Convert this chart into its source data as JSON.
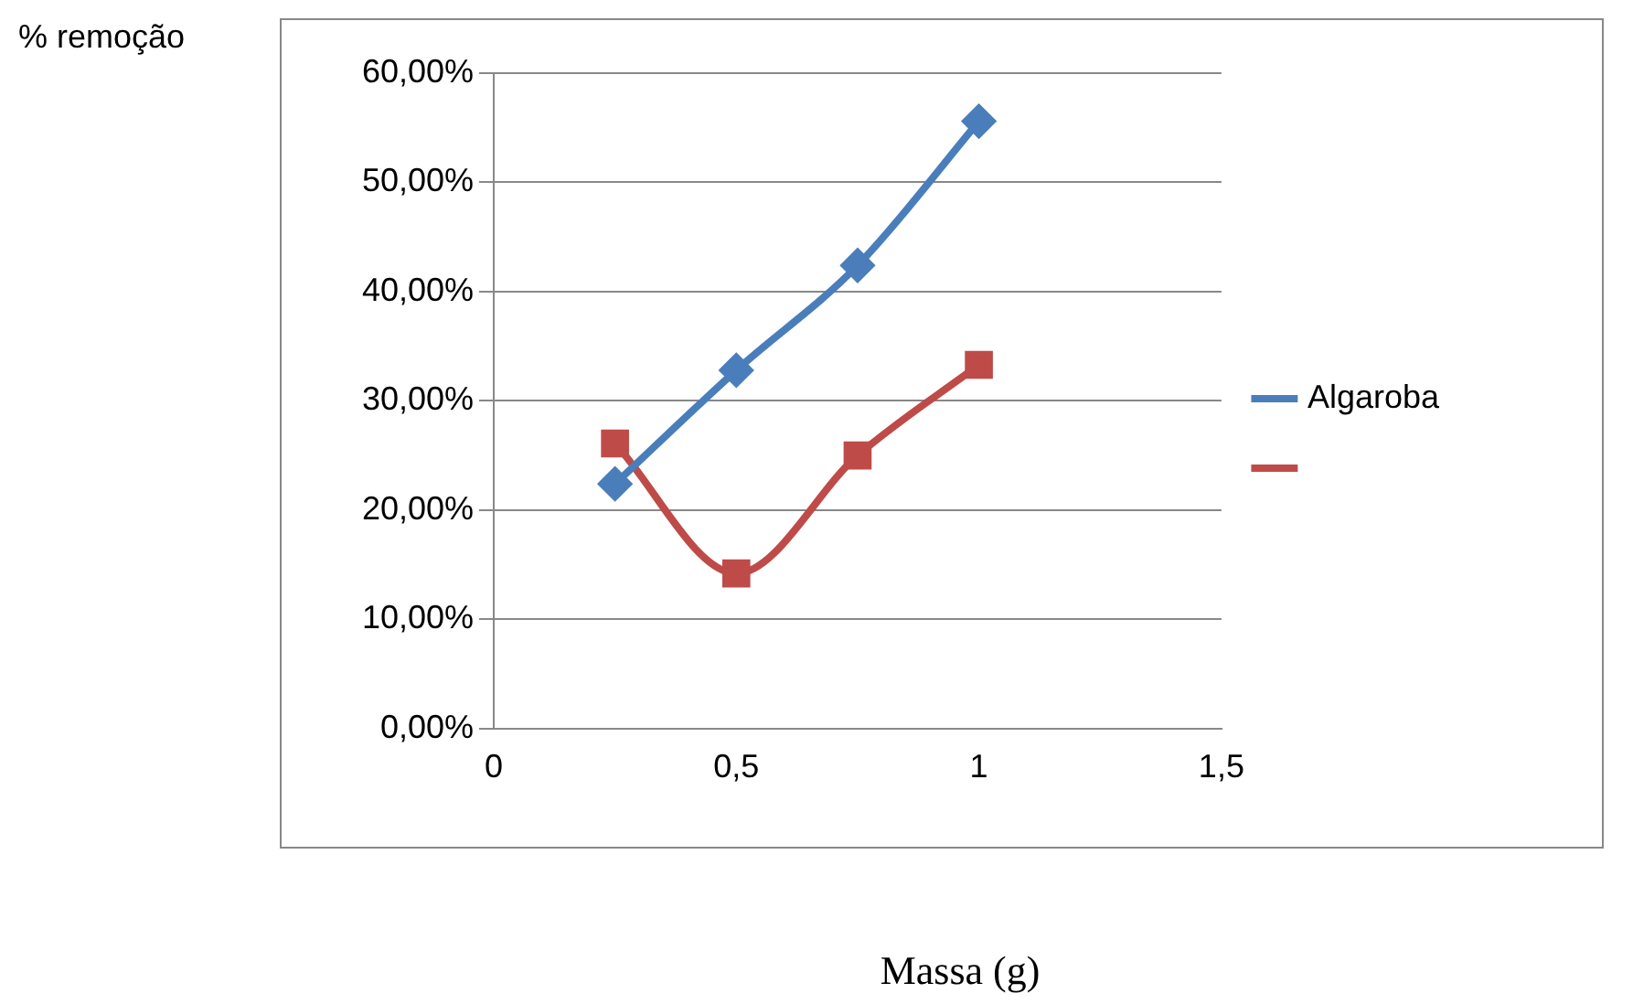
{
  "chart_data": {
    "type": "line",
    "annotations": [
      "% remoção"
    ],
    "xlabel": "Massa (g)",
    "x": [
      0.25,
      0.5,
      0.75,
      1
    ],
    "series": [
      {
        "name": "Algaroba",
        "color": "#4a7ebb",
        "values": [
          22.4,
          32.8,
          42.4,
          55.6
        ],
        "marker": "diamond"
      },
      {
        "color": "#be4b48",
        "values": [
          26.1,
          14.2,
          25.0,
          33.3
        ],
        "marker": "square"
      }
    ],
    "xlim": [
      0,
      1.5
    ],
    "xticks": [
      0,
      {
        "value": 0.5,
        "label": "0,5"
      },
      1,
      {
        "value": 1.5,
        "label": "1,5"
      }
    ],
    "ylim": [
      0,
      60
    ],
    "yticks": [
      {
        "value": 0,
        "label": "0,00%"
      },
      {
        "value": 10,
        "label": "10,00%"
      },
      {
        "value": 20,
        "label": "20,00%"
      },
      {
        "value": 30,
        "label": "30,00%"
      },
      {
        "value": 40,
        "label": "40,00%"
      },
      {
        "value": 50,
        "label": "50,00%"
      },
      {
        "value": 60,
        "label": "60,00%"
      }
    ],
    "grid": "y",
    "legend": "right"
  }
}
